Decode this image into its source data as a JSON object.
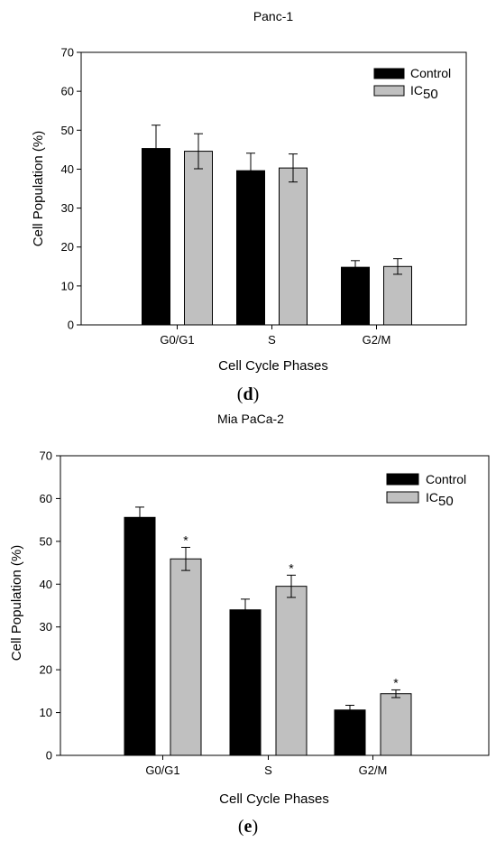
{
  "chart_data": [
    {
      "type": "bar",
      "title": "Panc-1",
      "xlabel": "Cell Cycle Phases",
      "ylabel": "Cell Population (%)",
      "categories": [
        "G0/G1",
        "S",
        "G2/M"
      ],
      "ylim": [
        0,
        70
      ],
      "yticks": [
        0,
        10,
        20,
        30,
        40,
        50,
        60,
        70
      ],
      "legend_position": "top-right",
      "panel_label": "d",
      "series": [
        {
          "name": "Control",
          "legend_main": "Control",
          "legend_sub": "",
          "color": "#000000",
          "values": [
            45.3,
            39.6,
            14.8
          ],
          "errors": [
            6.0,
            4.5,
            1.7
          ],
          "significant": [
            false,
            false,
            false
          ]
        },
        {
          "name": "IC50",
          "legend_main": "IC",
          "legend_sub": "50",
          "color": "#c0c0c0",
          "values": [
            44.6,
            40.3,
            15.0
          ],
          "errors": [
            4.5,
            3.6,
            2.0
          ],
          "significant": [
            false,
            false,
            false
          ]
        }
      ]
    },
    {
      "type": "bar",
      "title": "Mia PaCa-2",
      "xlabel": "Cell Cycle Phases",
      "ylabel": "Cell Population (%)",
      "categories": [
        "G0/G1",
        "S",
        "G2/M"
      ],
      "ylim": [
        0,
        70
      ],
      "yticks": [
        0,
        10,
        20,
        30,
        40,
        50,
        60,
        70
      ],
      "legend_position": "top-right",
      "panel_label": "e",
      "significance_mark": "*",
      "series": [
        {
          "name": "Control",
          "legend_main": "Control",
          "legend_sub": "",
          "color": "#000000",
          "values": [
            55.6,
            34.0,
            10.6
          ],
          "errors": [
            2.4,
            2.5,
            1.1
          ],
          "significant": [
            false,
            false,
            false
          ]
        },
        {
          "name": "IC50",
          "legend_main": "IC",
          "legend_sub": "50",
          "color": "#c0c0c0",
          "values": [
            45.9,
            39.5,
            14.4
          ],
          "errors": [
            2.7,
            2.6,
            0.9
          ],
          "significant": [
            true,
            true,
            true
          ]
        }
      ]
    }
  ]
}
